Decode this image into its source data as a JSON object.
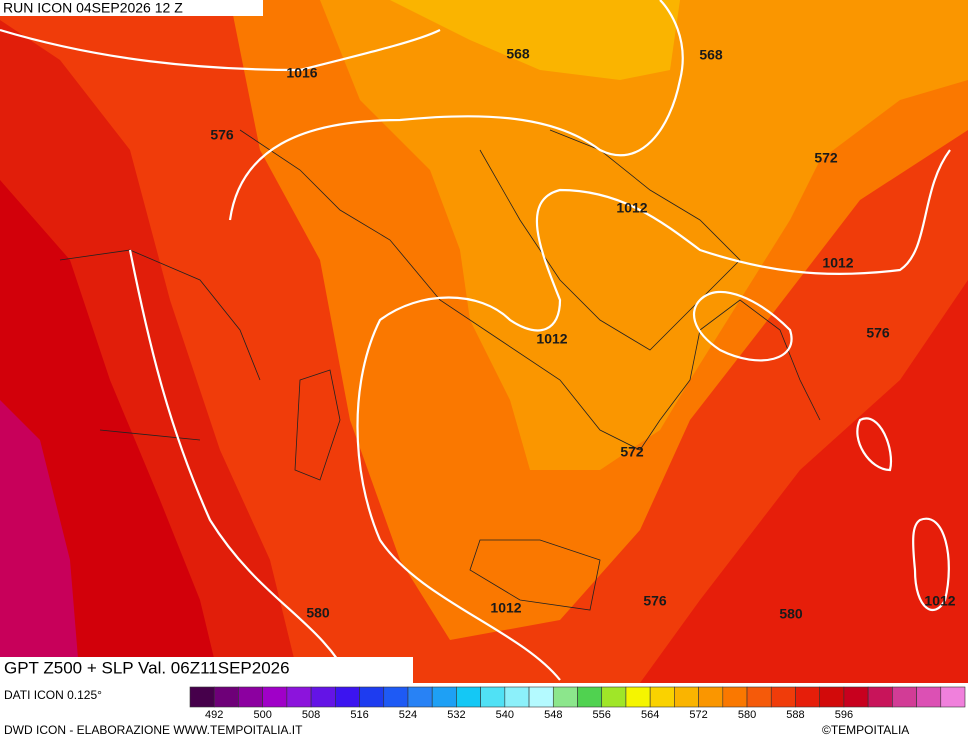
{
  "header": {
    "run": "RUN ICON 04SEP2026 12 Z"
  },
  "map": {
    "contour_labels": [
      568,
      568,
      1016,
      576,
      572,
      1012,
      1012,
      1012,
      576,
      572,
      576,
      580,
      1012,
      580,
      1012
    ]
  },
  "footer": {
    "title": "GPT Z500 + SLP Val. 06Z11SEP2026",
    "source": "DATI ICON 0.125°",
    "credit": "DWD ICON - ELABORAZIONE WWW.TEMPOITALIA.IT",
    "copyright": "©TEMPOITALIA"
  },
  "colorbar": {
    "colors": [
      "#46004b",
      "#6e0078",
      "#8c00a0",
      "#a000c8",
      "#8c14dc",
      "#6414e6",
      "#3c14f0",
      "#1e3cf0",
      "#1e5af5",
      "#2882f5",
      "#1ea0f5",
      "#14c8f5",
      "#50e1f5",
      "#8cf0fa",
      "#b4faff",
      "#8ce68c",
      "#50d250",
      "#a0e628",
      "#f5f500",
      "#fad200",
      "#fab400",
      "#fa9600",
      "#fa7800",
      "#f55a0a",
      "#f03c0a",
      "#e61e0a",
      "#d20a0a",
      "#c8001e",
      "#c8145a",
      "#d23c96",
      "#dc50b4",
      "#f080dc"
    ],
    "labels": [
      492,
      500,
      508,
      516,
      524,
      532,
      540,
      548,
      556,
      564,
      572,
      580,
      588,
      596
    ]
  }
}
